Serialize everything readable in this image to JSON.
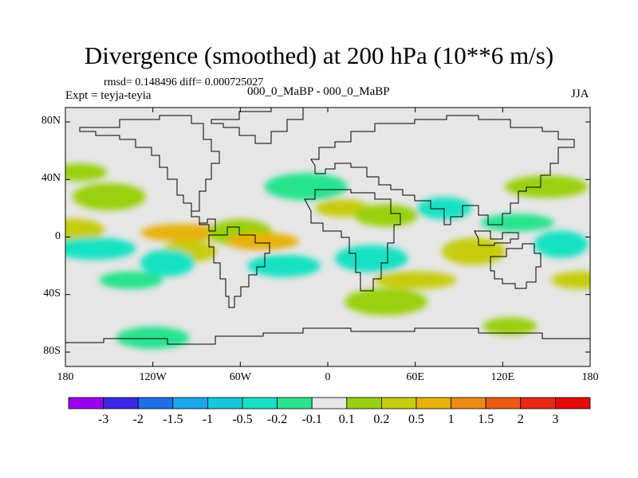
{
  "chart_data": {
    "type": "heatmap",
    "title": "Divergence (smoothed) at 200 hPa (10**6 m/s)",
    "stats_line": "rmsd= 0.148496 diff= 0.000725027",
    "experiment_label": "Expt = teyja-teyia",
    "case_label": "000_0_MaBP - 000_0_MaBP",
    "season": "JJA",
    "x_axis": {
      "range": [
        -180,
        180
      ],
      "ticks": [
        {
          "value": -180,
          "label": "180"
        },
        {
          "value": -120,
          "label": "120W"
        },
        {
          "value": -60,
          "label": "60W"
        },
        {
          "value": 0,
          "label": "0"
        },
        {
          "value": 60,
          "label": "60E"
        },
        {
          "value": 120,
          "label": "120E"
        },
        {
          "value": 180,
          "label": "180"
        }
      ]
    },
    "y_axis": {
      "range": [
        -90,
        90
      ],
      "ticks": [
        {
          "value": 80,
          "label": "80N"
        },
        {
          "value": 40,
          "label": "40N"
        },
        {
          "value": 0,
          "label": "0"
        },
        {
          "value": -40,
          "label": "40S"
        },
        {
          "value": -80,
          "label": "80S"
        }
      ]
    },
    "colorbar": {
      "labels": [
        "-3",
        "-2",
        "-1.5",
        "-1",
        "-0.5",
        "-0.2",
        "-0.1",
        "0.1",
        "0.2",
        "0.5",
        "1",
        "1.5",
        "2",
        "3"
      ],
      "colors": [
        "#9a00ef",
        "#3a28e6",
        "#1e6ee6",
        "#19a6ea",
        "#14c9dc",
        "#15e1c3",
        "#28e38e",
        "#e6e6e6",
        "#9ad010",
        "#c6cc10",
        "#e6b20a",
        "#eb8a14",
        "#ec5a14",
        "#e92814",
        "#e40a0a"
      ]
    },
    "anomalies": [
      {
        "lon": -170,
        "lat": 45,
        "level": 8
      },
      {
        "lon": -175,
        "lat": 5,
        "level": 9
      },
      {
        "lon": -150,
        "lat": 28,
        "level": 8
      },
      {
        "lon": -100,
        "lat": 3,
        "level": 10
      },
      {
        "lon": -95,
        "lat": -10,
        "level": 9
      },
      {
        "lon": -60,
        "lat": 3,
        "level": 8
      },
      {
        "lon": -45,
        "lat": -3,
        "level": 10
      },
      {
        "lon": -160,
        "lat": -8,
        "level": 5
      },
      {
        "lon": -110,
        "lat": -18,
        "level": 5
      },
      {
        "lon": -135,
        "lat": -30,
        "level": 6
      },
      {
        "lon": -30,
        "lat": -20,
        "level": 5
      },
      {
        "lon": -15,
        "lat": 35,
        "level": 6
      },
      {
        "lon": 10,
        "lat": 20,
        "level": 9
      },
      {
        "lon": 40,
        "lat": 15,
        "level": 8
      },
      {
        "lon": 30,
        "lat": -15,
        "level": 5
      },
      {
        "lon": 60,
        "lat": -30,
        "level": 9
      },
      {
        "lon": 80,
        "lat": 20,
        "level": 5
      },
      {
        "lon": 100,
        "lat": -10,
        "level": 9
      },
      {
        "lon": 130,
        "lat": 10,
        "level": 6
      },
      {
        "lon": 150,
        "lat": 35,
        "level": 8
      },
      {
        "lon": 160,
        "lat": -5,
        "level": 5
      },
      {
        "lon": 175,
        "lat": -30,
        "level": 9
      },
      {
        "lon": -120,
        "lat": -70,
        "level": 6
      },
      {
        "lon": 40,
        "lat": -45,
        "level": 8
      },
      {
        "lon": 125,
        "lat": -62,
        "level": 8
      }
    ]
  }
}
